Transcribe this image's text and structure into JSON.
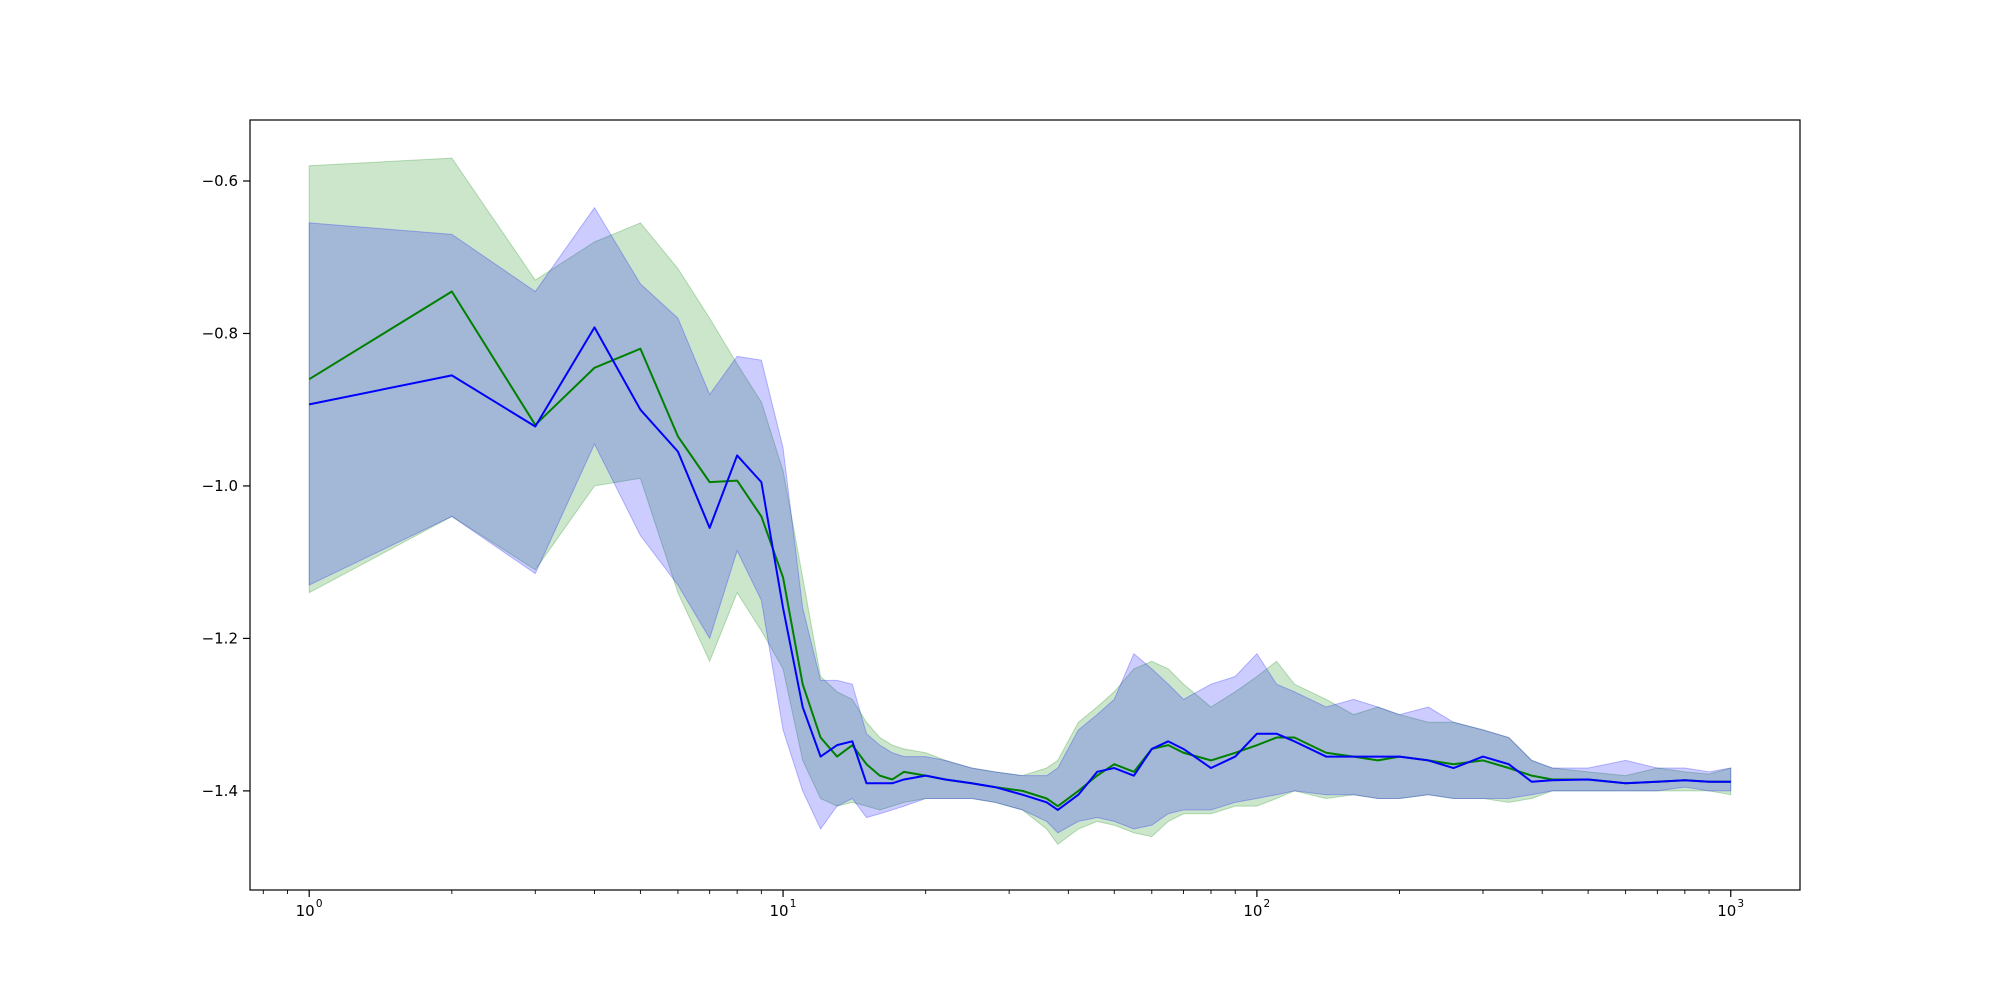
{
  "chart_data": {
    "type": "line",
    "title": "",
    "xlabel": "",
    "ylabel": "",
    "xscale": "log",
    "xlim": [
      0.75,
      1400
    ],
    "ylim": [
      -1.53,
      -0.52
    ],
    "grid": false,
    "legend": "none",
    "x_ticks": [
      {
        "value": 1,
        "label": "10",
        "exp": "0"
      },
      {
        "value": 10,
        "label": "10",
        "exp": "1"
      },
      {
        "value": 100,
        "label": "10",
        "exp": "2"
      },
      {
        "value": 1000,
        "label": "10",
        "exp": "3"
      }
    ],
    "y_ticks": [
      {
        "value": -0.6,
        "label": "−0.6"
      },
      {
        "value": -0.8,
        "label": "−0.8"
      },
      {
        "value": -1.0,
        "label": "−1.0"
      },
      {
        "value": -1.2,
        "label": "−1.2"
      },
      {
        "value": -1.4,
        "label": "−1.4"
      }
    ],
    "series": [
      {
        "color": "#008000",
        "band_color": "#008000",
        "band_opacity": 0.2,
        "x": [
          1,
          2,
          3,
          4,
          5,
          6,
          7,
          8,
          9,
          10,
          11,
          12,
          13,
          14,
          15,
          16,
          17,
          18,
          20,
          22,
          25,
          28,
          32,
          36,
          38,
          42,
          46,
          50,
          55,
          60,
          65,
          70,
          80,
          90,
          100,
          110,
          120,
          140,
          160,
          180,
          200,
          230,
          260,
          300,
          340,
          380,
          420,
          500,
          600,
          700,
          800,
          900,
          1000
        ],
        "y": [
          -0.86,
          -0.745,
          -0.92,
          -0.845,
          -0.82,
          -0.935,
          -0.995,
          -0.993,
          -1.04,
          -1.12,
          -1.26,
          -1.33,
          -1.355,
          -1.34,
          -1.365,
          -1.38,
          -1.385,
          -1.375,
          -1.38,
          -1.385,
          -1.39,
          -1.395,
          -1.4,
          -1.41,
          -1.42,
          -1.4,
          -1.38,
          -1.365,
          -1.375,
          -1.345,
          -1.34,
          -1.35,
          -1.36,
          -1.35,
          -1.34,
          -1.33,
          -1.33,
          -1.35,
          -1.355,
          -1.36,
          -1.355,
          -1.36,
          -1.365,
          -1.36,
          -1.37,
          -1.38,
          -1.385,
          -1.385,
          -1.39,
          -1.388,
          -1.386,
          -1.388,
          -1.388
        ],
        "upper": [
          -0.58,
          -0.57,
          -0.73,
          -0.68,
          -0.655,
          -0.715,
          -0.78,
          -0.84,
          -0.89,
          -0.98,
          -1.12,
          -1.25,
          -1.27,
          -1.28,
          -1.31,
          -1.33,
          -1.34,
          -1.345,
          -1.35,
          -1.36,
          -1.37,
          -1.375,
          -1.38,
          -1.37,
          -1.36,
          -1.31,
          -1.29,
          -1.27,
          -1.24,
          -1.23,
          -1.24,
          -1.26,
          -1.29,
          -1.27,
          -1.25,
          -1.23,
          -1.26,
          -1.28,
          -1.3,
          -1.29,
          -1.3,
          -1.31,
          -1.31,
          -1.32,
          -1.33,
          -1.36,
          -1.37,
          -1.375,
          -1.38,
          -1.37,
          -1.375,
          -1.378,
          -1.37
        ],
        "lower": [
          -1.14,
          -1.04,
          -1.11,
          -1.0,
          -0.99,
          -1.14,
          -1.23,
          -1.14,
          -1.19,
          -1.24,
          -1.36,
          -1.41,
          -1.42,
          -1.415,
          -1.42,
          -1.425,
          -1.42,
          -1.415,
          -1.41,
          -1.41,
          -1.41,
          -1.415,
          -1.425,
          -1.45,
          -1.47,
          -1.45,
          -1.44,
          -1.445,
          -1.455,
          -1.46,
          -1.44,
          -1.43,
          -1.43,
          -1.42,
          -1.42,
          -1.41,
          -1.4,
          -1.41,
          -1.405,
          -1.41,
          -1.41,
          -1.405,
          -1.41,
          -1.41,
          -1.415,
          -1.41,
          -1.4,
          -1.4,
          -1.4,
          -1.4,
          -1.4,
          -1.4,
          -1.405
        ]
      },
      {
        "color": "#0000ff",
        "band_color": "#0000ff",
        "band_opacity": 0.2,
        "x": [
          1,
          2,
          3,
          4,
          5,
          6,
          7,
          8,
          9,
          10,
          11,
          12,
          13,
          14,
          15,
          16,
          17,
          18,
          20,
          22,
          25,
          28,
          32,
          36,
          38,
          42,
          46,
          50,
          55,
          60,
          65,
          70,
          80,
          90,
          100,
          110,
          120,
          140,
          160,
          180,
          200,
          230,
          260,
          300,
          340,
          380,
          420,
          500,
          600,
          700,
          800,
          900,
          1000
        ],
        "y": [
          -0.893,
          -0.855,
          -0.922,
          -0.792,
          -0.9,
          -0.955,
          -1.055,
          -0.96,
          -0.995,
          -1.16,
          -1.29,
          -1.355,
          -1.34,
          -1.335,
          -1.39,
          -1.39,
          -1.39,
          -1.385,
          -1.38,
          -1.385,
          -1.39,
          -1.395,
          -1.405,
          -1.415,
          -1.425,
          -1.405,
          -1.375,
          -1.37,
          -1.38,
          -1.345,
          -1.335,
          -1.345,
          -1.37,
          -1.355,
          -1.325,
          -1.325,
          -1.335,
          -1.355,
          -1.355,
          -1.355,
          -1.355,
          -1.36,
          -1.37,
          -1.355,
          -1.365,
          -1.388,
          -1.386,
          -1.385,
          -1.39,
          -1.388,
          -1.386,
          -1.388,
          -1.388
        ],
        "upper": [
          -0.655,
          -0.67,
          -0.745,
          -0.635,
          -0.735,
          -0.78,
          -0.88,
          -0.83,
          -0.835,
          -0.95,
          -1.16,
          -1.255,
          -1.255,
          -1.26,
          -1.325,
          -1.34,
          -1.35,
          -1.355,
          -1.355,
          -1.36,
          -1.37,
          -1.375,
          -1.38,
          -1.38,
          -1.37,
          -1.32,
          -1.3,
          -1.28,
          -1.22,
          -1.24,
          -1.26,
          -1.28,
          -1.26,
          -1.25,
          -1.22,
          -1.26,
          -1.27,
          -1.29,
          -1.28,
          -1.29,
          -1.3,
          -1.29,
          -1.31,
          -1.32,
          -1.33,
          -1.36,
          -1.37,
          -1.37,
          -1.36,
          -1.37,
          -1.37,
          -1.375,
          -1.37
        ],
        "lower": [
          -1.13,
          -1.04,
          -1.115,
          -0.945,
          -1.065,
          -1.13,
          -1.2,
          -1.085,
          -1.15,
          -1.32,
          -1.4,
          -1.45,
          -1.42,
          -1.41,
          -1.435,
          -1.43,
          -1.425,
          -1.42,
          -1.41,
          -1.41,
          -1.41,
          -1.415,
          -1.425,
          -1.44,
          -1.455,
          -1.44,
          -1.435,
          -1.44,
          -1.45,
          -1.445,
          -1.43,
          -1.425,
          -1.425,
          -1.415,
          -1.41,
          -1.405,
          -1.4,
          -1.405,
          -1.405,
          -1.41,
          -1.41,
          -1.405,
          -1.41,
          -1.41,
          -1.41,
          -1.405,
          -1.4,
          -1.4,
          -1.4,
          -1.4,
          -1.395,
          -1.4,
          -1.4
        ]
      }
    ]
  }
}
